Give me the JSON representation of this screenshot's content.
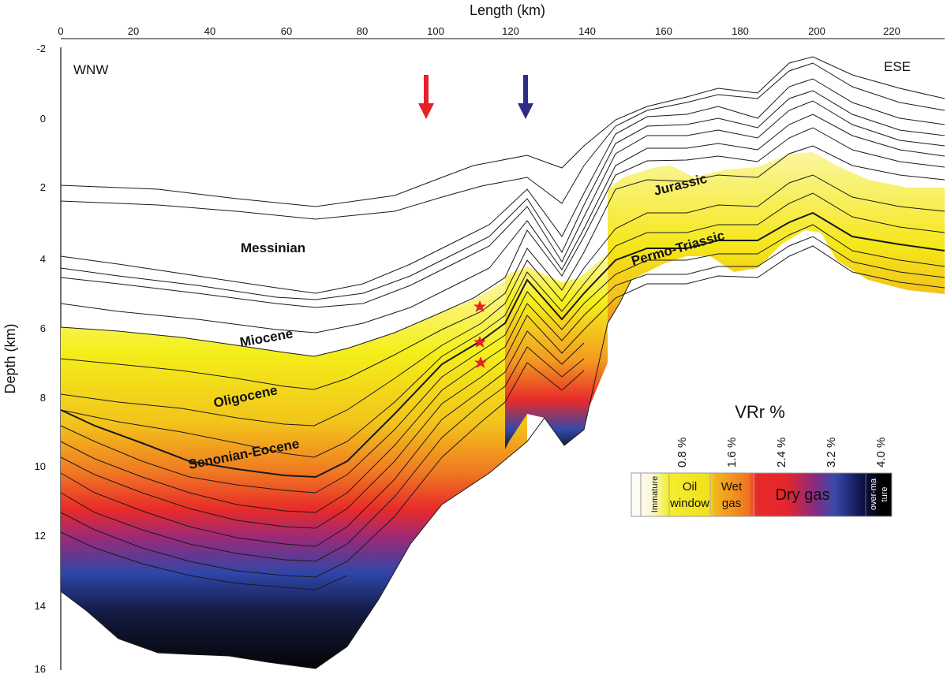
{
  "axes": {
    "x_title": "Length (km)",
    "y_title": "Depth (km)",
    "x_ticks": [
      "0",
      "20",
      "40",
      "60",
      "80",
      "100",
      "120",
      "140",
      "160",
      "180",
      "200",
      "220"
    ],
    "y_ticks": [
      "-2",
      "0",
      "2",
      "4",
      "6",
      "8",
      "10",
      "12",
      "14",
      "16"
    ]
  },
  "section": {
    "left_label": "WNW",
    "right_label": "ESE",
    "stratigraphy": [
      "Messinian",
      "Miocene",
      "Oligocene",
      "Senonian-Eocene",
      "Jurassic",
      "Permo-Triassic"
    ]
  },
  "markers": {
    "arrow_colors": [
      "#e8202a",
      "#2b2d86"
    ],
    "star_color": "#e8202a"
  },
  "legend": {
    "title": "VRr %",
    "ticks": [
      "0.8 %",
      "1.6 %",
      "2.4 %",
      "3.2 %",
      "4.0 %"
    ],
    "zones": {
      "immature": "Immature",
      "oil_line1": "Oil",
      "oil_line2": "window",
      "wet_line1": "Wet",
      "wet_line2": "gas",
      "dry": "Dry gas",
      "over_line1": "over-ma",
      "over_line2": "ture"
    }
  }
}
